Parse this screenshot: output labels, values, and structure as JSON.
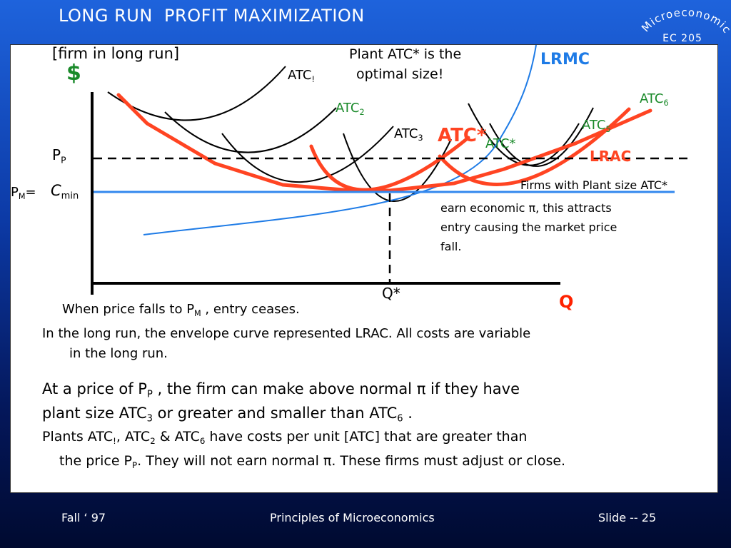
{
  "slide": {
    "title": "LONG RUN  PROFIT MAXIMIZATION",
    "badge_top": "Microeconomics",
    "badge_bottom": "EC 205"
  },
  "figure": {
    "subtitle": "[firm in long run]",
    "y_axis_label": "$",
    "x_axis_label": "Q",
    "lrmc_label": "LRMC",
    "lrac_label": "LRAC",
    "atc_star_red": "ATC*",
    "atc_star_small": "ATC*",
    "q_star": "Q*",
    "pp": {
      "base": "P",
      "sub": "P"
    },
    "pm": {
      "base": "P",
      "sub": "M",
      "eq": "="
    },
    "cmin": {
      "base": "C",
      "sub": "min"
    },
    "atc1": {
      "base": "ATC",
      "sub": "!"
    },
    "atc2": {
      "base": "ATC",
      "sub": "2"
    },
    "atc3": {
      "base": "ATC",
      "sub": "3"
    },
    "atc5": {
      "base": "ATC",
      "sub": "5"
    },
    "atc6": {
      "base": "ATC",
      "sub": "6"
    },
    "note_optimal_l1": "Plant ATC* is the",
    "note_optimal_l2": "optimal size!",
    "note_firms_l1": "Firms with Plant size ATC*",
    "note_firms_l2": "earn economic π, this attracts",
    "note_firms_l3": "entry causing the market price",
    "note_firms_l4": "fall."
  },
  "text": {
    "when_a": "When price falls to P",
    "when_sub": "M",
    "when_b": " , entry ceases.",
    "lr1": "In the long run, the envelope curve represented LRAC.  All costs are variable",
    "lr2": "in the  long run.",
    "p1_a": "At a price of P",
    "p1_sub1": "P",
    "p1_b": " ,  the firm can make above normal π if they have",
    "p1_c": "plant size ATC",
    "p1_sub2": "3",
    "p1_d": " or greater and smaller  than ATC",
    "p1_sub3": "6",
    "p1_e": " .",
    "p2_a": "Plants ATC",
    "p2_sub1": "!",
    "p2_b": ", ATC",
    "p2_sub2": "2",
    "p2_c": " & ATC",
    "p2_sub3": "6",
    "p2_d": " have costs per unit [ATC] that are greater than",
    "p2_e": "the price P",
    "p2_sub4": "P",
    "p2_f": ".  They will not earn normal π.  These firms must adjust or close."
  },
  "footer": {
    "left": "Fall ‘ 97",
    "center": "Principles of Microeconomics",
    "right": "Slide -- 25"
  },
  "colors": {
    "lrac": "#ff4422",
    "lrmc": "#1e7be6",
    "pm_line": "#3388ee",
    "dollar": "#1a8a2a",
    "q_label": "#ff2200"
  }
}
